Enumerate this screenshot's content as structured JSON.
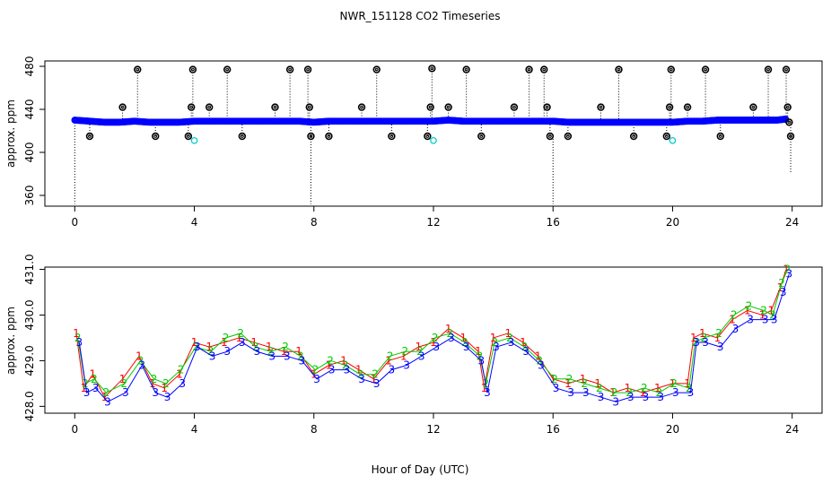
{
  "title": "NWR_151128  CO2 Timeseries",
  "xlabel": "Hour of Day (UTC)",
  "colors": {
    "main": "#0000ff",
    "alt": "#00cccc",
    "flag": "#000000",
    "ch1": "#ff0000",
    "ch2": "#00cc00",
    "ch3": "#0000ff"
  },
  "chart_data": [
    {
      "type": "scatter",
      "panel": "top",
      "ylabel": "approx. ppm",
      "xlim": [
        -1,
        25
      ],
      "ylim": [
        350,
        485
      ],
      "x_ticks": [
        0,
        4,
        8,
        12,
        16,
        20,
        24
      ],
      "y_ticks": [
        360,
        400,
        440,
        480
      ],
      "baseline": {
        "x": [
          0.0,
          0.5,
          1.0,
          1.5,
          2.0,
          2.5,
          3.0,
          3.5,
          4.0,
          4.5,
          5.0,
          5.5,
          6.0,
          6.5,
          7.0,
          7.5,
          8.0,
          8.5,
          9.0,
          9.5,
          10.0,
          10.5,
          11.0,
          11.5,
          12.0,
          12.5,
          13.0,
          13.5,
          14.0,
          14.5,
          15.0,
          15.5,
          16.0,
          16.5,
          17.0,
          17.5,
          18.0,
          18.5,
          19.0,
          19.5,
          20.0,
          20.5,
          21.0,
          21.5,
          22.0,
          22.5,
          23.0,
          23.5,
          23.8
        ],
        "y": [
          430,
          429,
          428,
          428,
          429,
          428,
          428,
          428,
          429,
          429,
          429,
          429,
          429,
          429,
          429,
          429,
          428,
          429,
          429,
          429,
          429,
          429,
          429,
          429,
          429,
          430,
          429,
          429,
          429,
          429,
          429,
          429,
          429,
          428,
          428,
          428,
          428,
          428,
          428,
          428,
          428,
          429,
          429,
          430,
          430,
          430,
          430,
          430,
          431
        ]
      },
      "flagged_points": [
        {
          "x": 0.5,
          "y": 415
        },
        {
          "x": 1.6,
          "y": 442
        },
        {
          "x": 2.1,
          "y": 477
        },
        {
          "x": 2.7,
          "y": 415
        },
        {
          "x": 3.8,
          "y": 415
        },
        {
          "x": 3.9,
          "y": 442
        },
        {
          "x": 3.95,
          "y": 477
        },
        {
          "x": 4.5,
          "y": 442
        },
        {
          "x": 5.1,
          "y": 477
        },
        {
          "x": 5.6,
          "y": 415
        },
        {
          "x": 6.7,
          "y": 442
        },
        {
          "x": 7.2,
          "y": 477
        },
        {
          "x": 7.8,
          "y": 477
        },
        {
          "x": 7.85,
          "y": 442
        },
        {
          "x": 7.9,
          "y": 415
        },
        {
          "x": 8.5,
          "y": 415
        },
        {
          "x": 9.6,
          "y": 442
        },
        {
          "x": 10.1,
          "y": 477
        },
        {
          "x": 10.6,
          "y": 415
        },
        {
          "x": 11.8,
          "y": 415
        },
        {
          "x": 11.9,
          "y": 442
        },
        {
          "x": 11.95,
          "y": 478
        },
        {
          "x": 12.5,
          "y": 442
        },
        {
          "x": 13.1,
          "y": 477
        },
        {
          "x": 13.6,
          "y": 415
        },
        {
          "x": 14.7,
          "y": 442
        },
        {
          "x": 15.2,
          "y": 477
        },
        {
          "x": 15.7,
          "y": 477
        },
        {
          "x": 15.8,
          "y": 442
        },
        {
          "x": 15.9,
          "y": 415
        },
        {
          "x": 16.5,
          "y": 415
        },
        {
          "x": 17.6,
          "y": 442
        },
        {
          "x": 18.2,
          "y": 477
        },
        {
          "x": 18.7,
          "y": 415
        },
        {
          "x": 19.8,
          "y": 415
        },
        {
          "x": 19.9,
          "y": 442
        },
        {
          "x": 19.95,
          "y": 477
        },
        {
          "x": 20.5,
          "y": 442
        },
        {
          "x": 21.1,
          "y": 477
        },
        {
          "x": 21.6,
          "y": 415
        },
        {
          "x": 22.7,
          "y": 442
        },
        {
          "x": 23.2,
          "y": 477
        },
        {
          "x": 23.8,
          "y": 477
        },
        {
          "x": 23.85,
          "y": 442
        },
        {
          "x": 23.9,
          "y": 428
        },
        {
          "x": 23.95,
          "y": 415
        }
      ],
      "alt_points": [
        {
          "x": 4.0,
          "y": 411
        },
        {
          "x": 12.0,
          "y": 411
        },
        {
          "x": 20.0,
          "y": 411
        }
      ],
      "drop_lines": [
        {
          "x": 0.0,
          "y1": 430,
          "y2": 352
        },
        {
          "x": 7.9,
          "y1": 415,
          "y2": 352
        },
        {
          "x": 16.0,
          "y1": 415,
          "y2": 352
        },
        {
          "x": 23.95,
          "y1": 415,
          "y2": 380
        }
      ]
    },
    {
      "type": "line",
      "panel": "bottom",
      "ylabel": "approx. ppm",
      "xlim": [
        -1,
        25
      ],
      "ylim": [
        427.85,
        431.05
      ],
      "x_ticks": [
        0,
        4,
        8,
        12,
        16,
        20,
        24
      ],
      "y_ticks": [
        428.0,
        429.0,
        430.0,
        431.0
      ],
      "y_tick_labels": [
        "428.0",
        "429.0",
        "430.0",
        "431.0"
      ],
      "series": [
        {
          "name": "1",
          "marker": "1",
          "x": [
            0.05,
            0.3,
            0.6,
            1.0,
            1.6,
            2.15,
            2.6,
            3.0,
            3.5,
            4.0,
            4.5,
            5.0,
            5.5,
            6.0,
            6.5,
            7.0,
            7.5,
            8.0,
            8.5,
            9.0,
            9.5,
            10.0,
            10.5,
            11.0,
            11.5,
            12.0,
            12.5,
            13.0,
            13.5,
            13.7,
            14.0,
            14.5,
            15.0,
            15.5,
            16.0,
            16.5,
            17.0,
            17.5,
            18.0,
            18.5,
            19.0,
            19.5,
            20.0,
            20.5,
            20.7,
            21.0,
            21.5,
            22.0,
            22.5,
            23.0,
            23.3,
            23.6,
            23.8
          ],
          "y": [
            429.6,
            428.4,
            428.7,
            428.2,
            428.6,
            429.1,
            428.5,
            428.4,
            428.7,
            429.4,
            429.3,
            429.4,
            429.5,
            429.4,
            429.3,
            429.2,
            429.2,
            428.7,
            428.9,
            429.0,
            428.8,
            428.6,
            429.0,
            429.1,
            429.3,
            429.4,
            429.7,
            429.5,
            429.2,
            428.4,
            429.5,
            429.6,
            429.4,
            429.1,
            428.6,
            428.5,
            428.6,
            428.5,
            428.3,
            428.4,
            428.3,
            428.4,
            428.5,
            428.5,
            429.5,
            429.6,
            429.5,
            429.9,
            430.1,
            430.0,
            430.1,
            430.6,
            431.0
          ]
        },
        {
          "name": "2",
          "marker": "2",
          "x": [
            0.1,
            0.35,
            0.65,
            1.05,
            1.65,
            2.2,
            2.65,
            3.05,
            3.55,
            4.05,
            4.55,
            5.05,
            5.55,
            6.05,
            6.55,
            7.05,
            7.55,
            8.05,
            8.55,
            9.05,
            9.55,
            10.05,
            10.55,
            11.05,
            11.55,
            12.05,
            12.55,
            13.05,
            13.55,
            13.75,
            14.05,
            14.55,
            15.05,
            15.55,
            16.05,
            16.55,
            17.05,
            17.55,
            18.05,
            18.55,
            19.05,
            19.55,
            20.05,
            20.55,
            20.75,
            21.05,
            21.55,
            22.05,
            22.55,
            23.05,
            23.35,
            23.65,
            23.85
          ],
          "y": [
            429.5,
            428.5,
            428.6,
            428.3,
            428.5,
            429.0,
            428.6,
            428.5,
            428.8,
            429.3,
            429.2,
            429.5,
            429.6,
            429.3,
            429.2,
            429.3,
            429.1,
            428.8,
            429.0,
            428.9,
            428.7,
            428.7,
            429.1,
            429.2,
            429.2,
            429.5,
            429.6,
            429.4,
            429.1,
            428.5,
            429.4,
            429.5,
            429.3,
            429.0,
            428.6,
            428.6,
            428.5,
            428.4,
            428.3,
            428.3,
            428.4,
            428.3,
            428.5,
            428.4,
            429.4,
            429.5,
            429.6,
            430.0,
            430.2,
            430.1,
            430.0,
            430.7,
            431.0
          ]
        },
        {
          "name": "3",
          "marker": "3",
          "x": [
            0.15,
            0.4,
            0.7,
            1.1,
            1.7,
            2.25,
            2.7,
            3.1,
            3.6,
            4.1,
            4.6,
            5.1,
            5.6,
            6.1,
            6.6,
            7.1,
            7.6,
            8.1,
            8.6,
            9.1,
            9.6,
            10.1,
            10.6,
            11.1,
            11.6,
            12.1,
            12.6,
            13.1,
            13.6,
            13.8,
            14.1,
            14.6,
            15.1,
            15.6,
            16.1,
            16.6,
            17.1,
            17.6,
            18.1,
            18.6,
            19.1,
            19.6,
            20.1,
            20.6,
            20.8,
            21.1,
            21.6,
            22.1,
            22.6,
            23.1,
            23.4,
            23.7,
            23.9
          ],
          "y": [
            429.4,
            428.3,
            428.4,
            428.1,
            428.3,
            428.9,
            428.3,
            428.2,
            428.5,
            429.3,
            429.1,
            429.2,
            429.4,
            429.2,
            429.1,
            429.1,
            429.0,
            428.6,
            428.8,
            428.8,
            428.6,
            428.5,
            428.8,
            428.9,
            429.1,
            429.3,
            429.5,
            429.3,
            429.0,
            428.3,
            429.3,
            429.4,
            429.2,
            428.9,
            428.4,
            428.3,
            428.3,
            428.2,
            428.1,
            428.2,
            428.2,
            428.2,
            428.3,
            428.3,
            429.4,
            429.4,
            429.3,
            429.7,
            429.9,
            429.9,
            429.9,
            430.5,
            430.9
          ]
        }
      ]
    }
  ]
}
